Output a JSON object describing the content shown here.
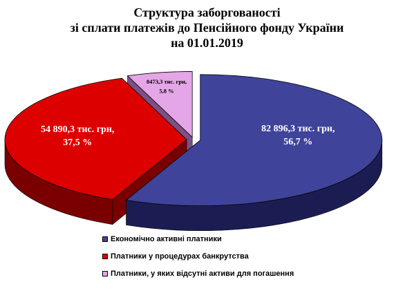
{
  "chart_data": {
    "type": "pie",
    "title": "Структура заборгованості\nзі сплати платежів до Пенсійного фонду України\nна 01.01.2019",
    "unit": "тис. грн",
    "slices": [
      {
        "name": "Економічно активні платники",
        "value": 82896.3,
        "percent": 56.7,
        "label_line1": "82 896,3 тис. грн,",
        "label_line2": "56,7 %",
        "color": "#40439a",
        "dark_color": "#1b1d52"
      },
      {
        "name": "Платники у процедурах банкрутства",
        "value": 54890.3,
        "percent": 37.5,
        "label_line1": "54 890,3 тис. грн,",
        "label_line2": "37,5 %",
        "color": "#dd0000",
        "dark_color": "#7a0000"
      },
      {
        "name": "Платники, у яких відсутні активи для погашення",
        "value": 8473.3,
        "percent": 5.8,
        "label_line1": "8473,3 тис. грн,",
        "label_line2": "5,8 %",
        "color": "#e4a6e6",
        "dark_color": "#7c4f86"
      }
    ],
    "exploded": true,
    "three_d": true,
    "legend_position": "bottom-left"
  },
  "title_lines": [
    "Структура заборгованості",
    "зі сплати платежів до Пенсійного фонду України",
    "на 01.01.2019"
  ],
  "legend": [
    "Економічно активні платники",
    "Платники у процедурах банкрутства",
    "Платники, у яких відсутні активи для погашення"
  ]
}
